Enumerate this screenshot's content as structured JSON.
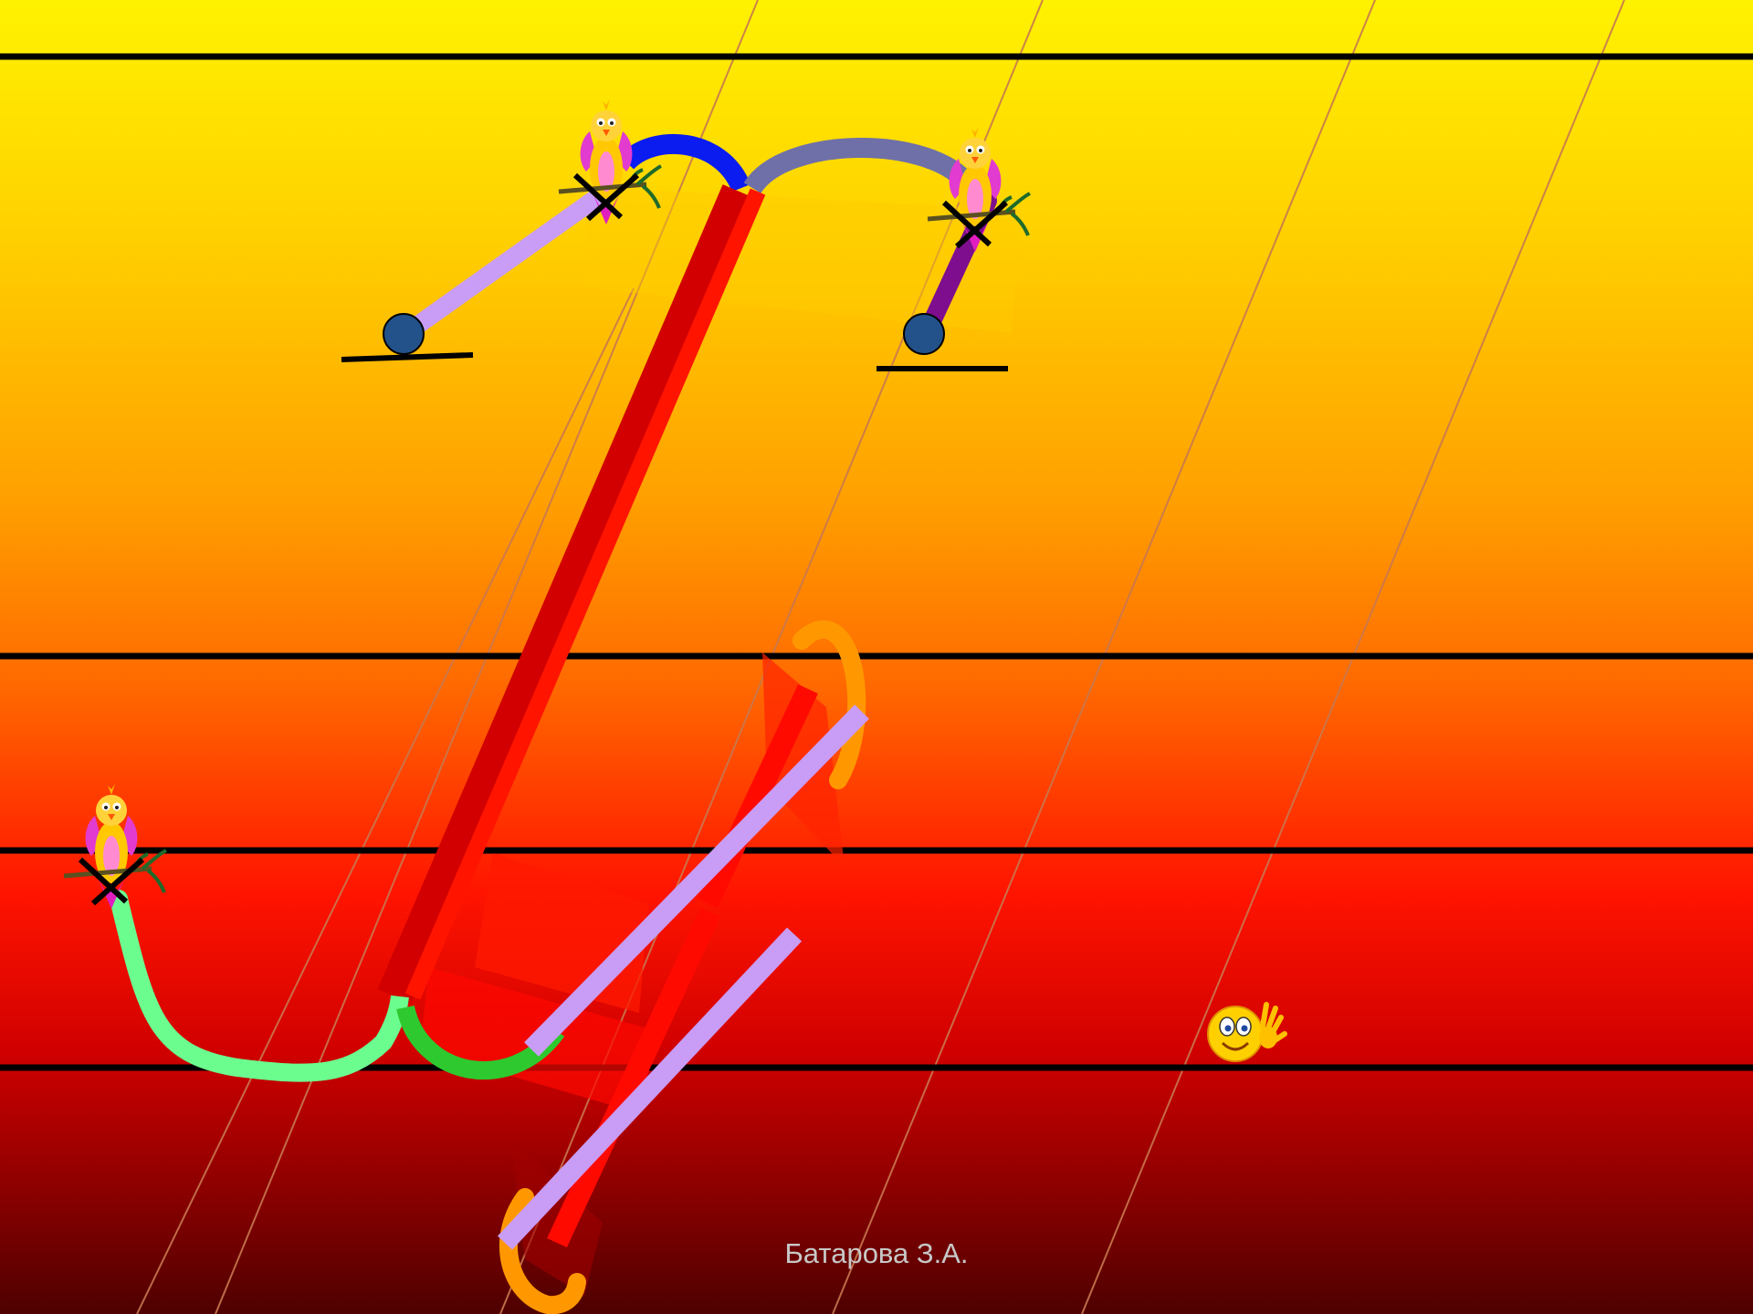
{
  "slide": {
    "author": "Батарова З.А.",
    "background": {
      "top_color": "#fff200",
      "mid_color": "#ff7a00",
      "lower_color": "#ff0a00",
      "bottom_color": "#5a0000"
    },
    "colors": {
      "main_stroke": "#ff1400",
      "main_stroke_shade": "#d20000",
      "lilac": "#c99cf5",
      "blue": "#0a1cf0",
      "slate": "#6f70a8",
      "purple": "#7e0e8e",
      "light_green": "#6cfd8f",
      "green": "#2ec92e",
      "orange": "#ff9800",
      "dot": "#23528a",
      "ruling": "#000000",
      "slant": "#c87850"
    },
    "icons": [
      "bird-icon",
      "smiley-wave-icon"
    ]
  }
}
